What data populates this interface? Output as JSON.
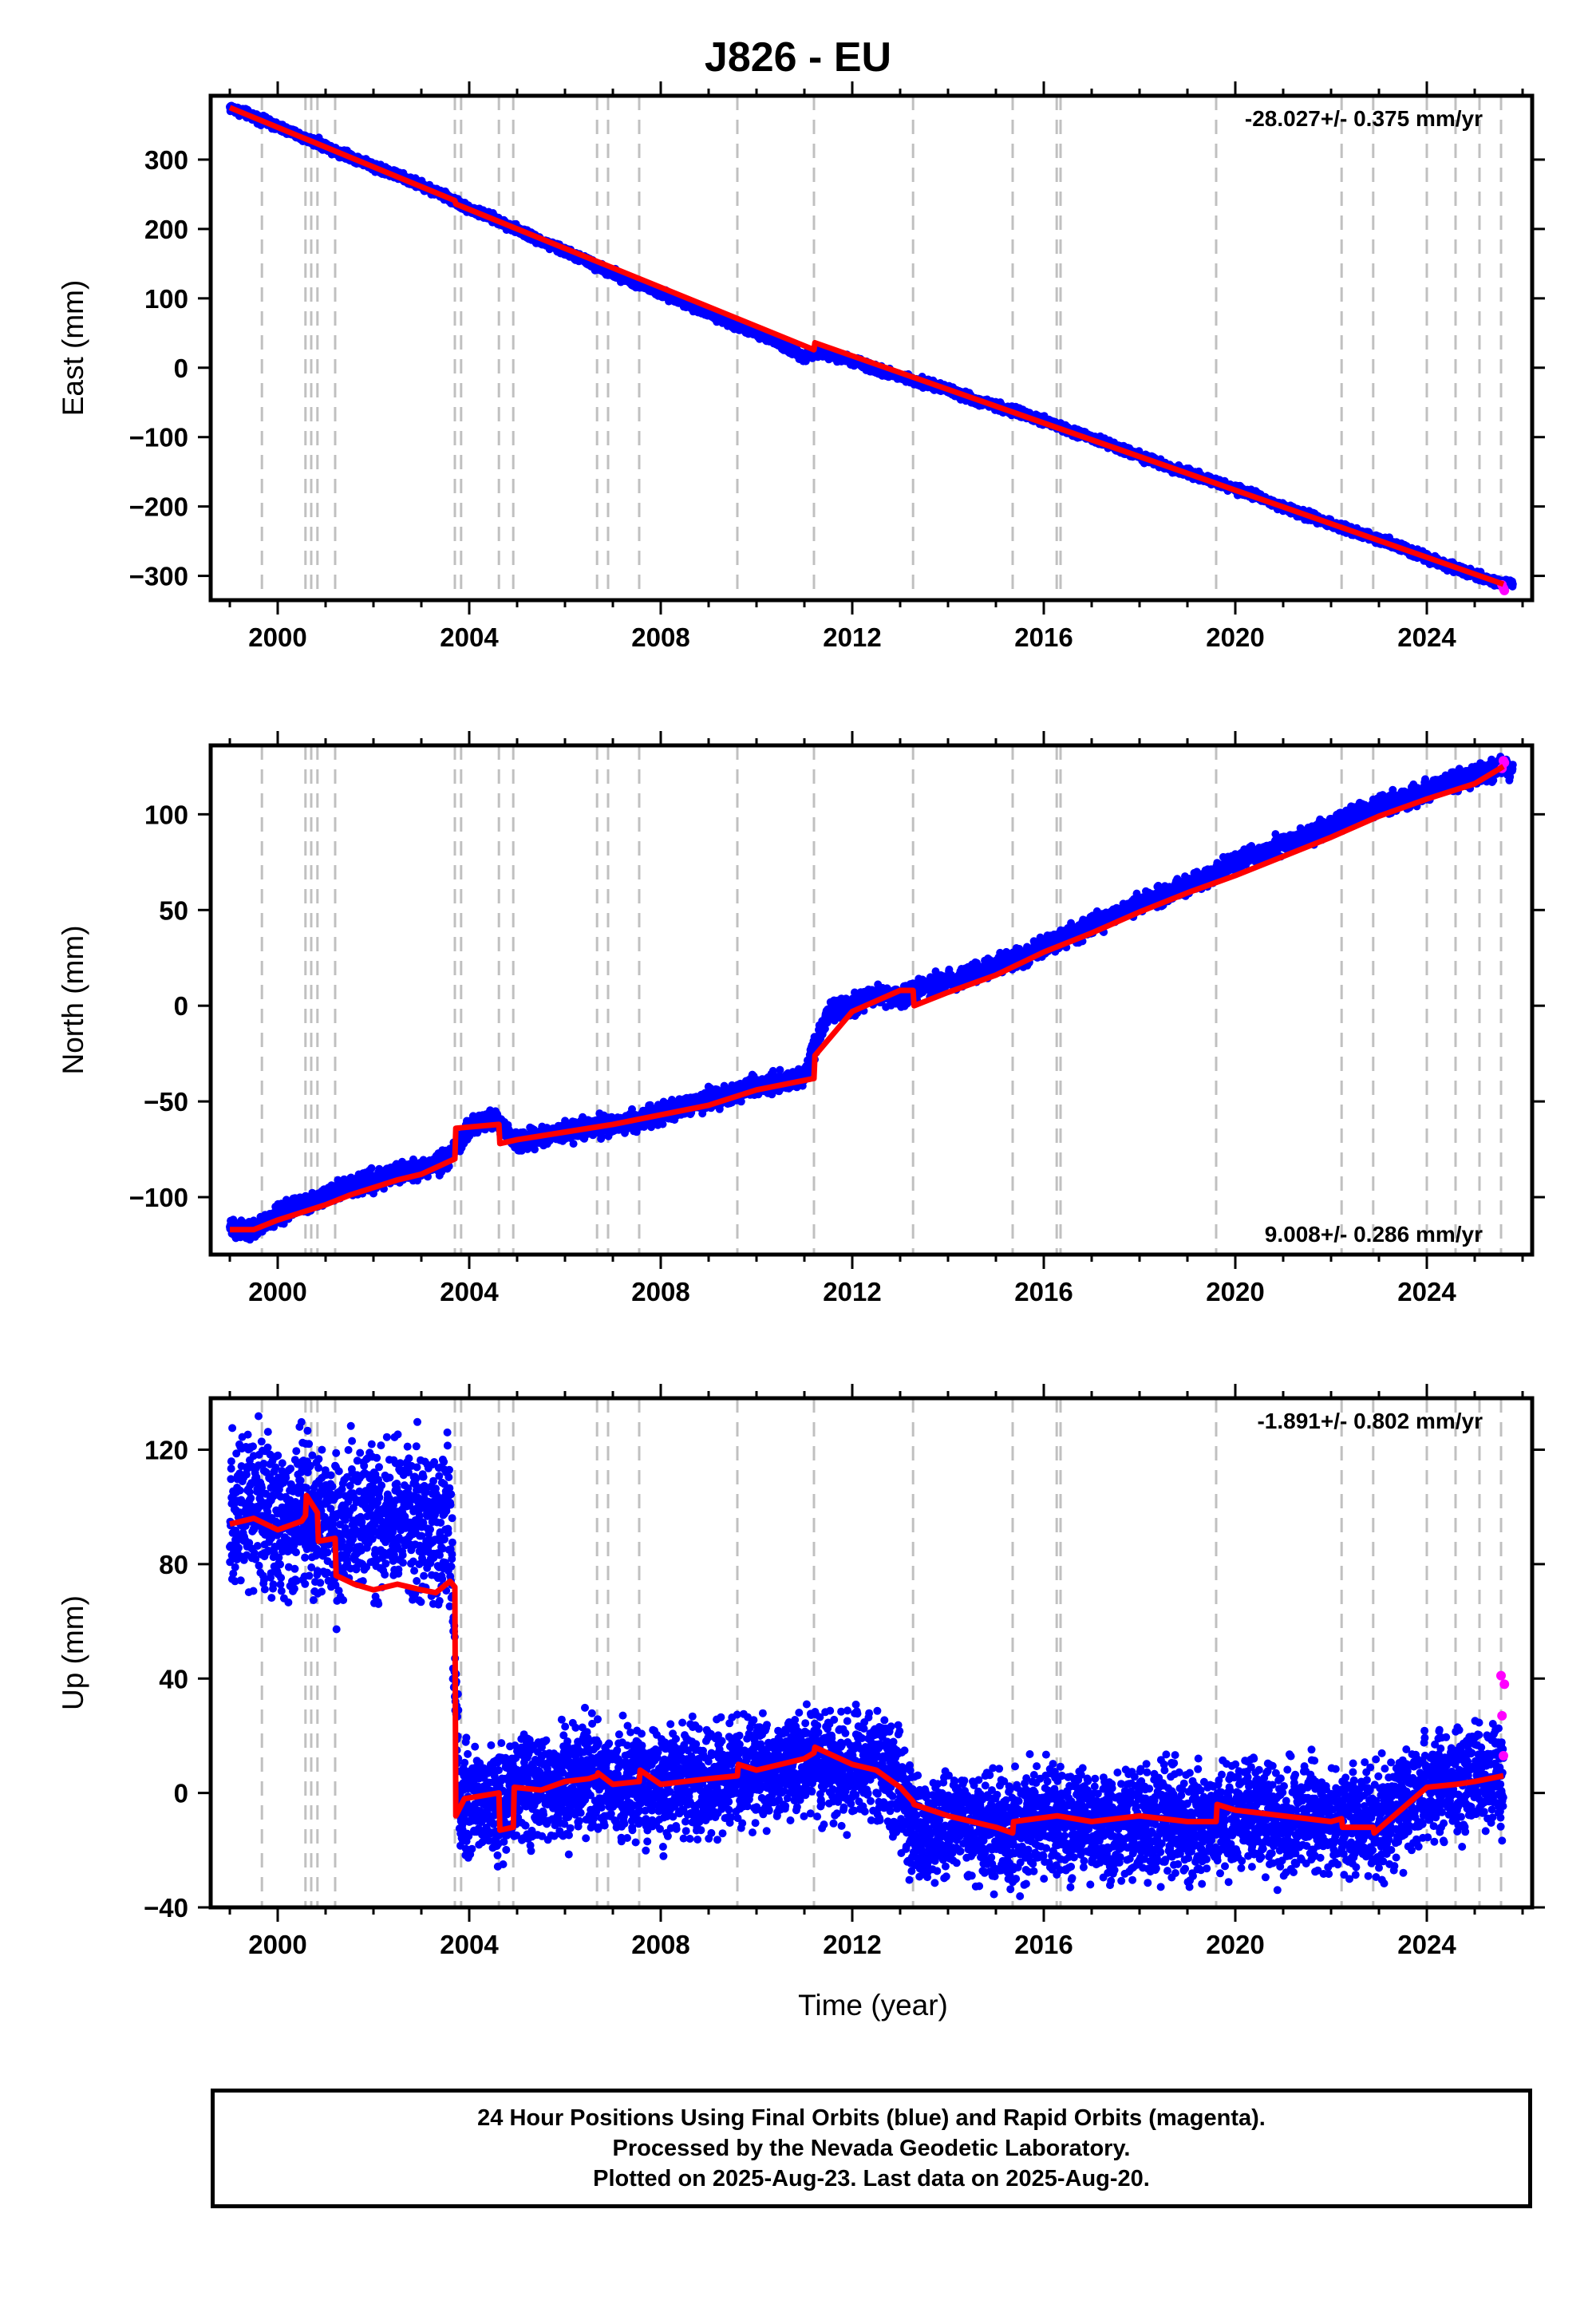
{
  "title": "J826 - EU",
  "x_axis_title": "Time (year)",
  "footer": {
    "line1": "24 Hour Positions Using Final Orbits (blue) and Rapid Orbits (magenta).",
    "line2": "Processed by the Nevada Geodetic Laboratory.",
    "line3": "Plotted on 2025-Aug-23. Last data on 2025-Aug-20."
  },
  "colors": {
    "final_orbits": "#0000ff",
    "rapid_orbits": "#ff00ff",
    "model": "#ff0000",
    "event_lines": "#c0c0c0"
  },
  "chart_data": [
    {
      "type": "scatter",
      "panel": "east",
      "ylabel": "East (mm)",
      "xlabel": "",
      "xlim": [
        1998.6,
        2026.2
      ],
      "ylim": [
        -335,
        392
      ],
      "x_ticks": [
        2000,
        2004,
        2008,
        2012,
        2016,
        2020,
        2024
      ],
      "y_ticks": [
        -300,
        -200,
        -100,
        0,
        100,
        200,
        300
      ],
      "rate_text": "-28.027+/- 0.375 mm/yr",
      "rate_position": "top-right",
      "event_lines": [
        1999.67,
        2000.58,
        2000.7,
        2000.83,
        2001.2,
        2003.7,
        2003.83,
        2004.62,
        2004.92,
        2006.67,
        2006.9,
        2007.55,
        2009.6,
        2011.2,
        2013.27,
        2015.35,
        2016.27,
        2016.35,
        2019.6,
        2022.22,
        2022.88,
        2024.0,
        2024.6,
        2025.1,
        2025.55
      ],
      "series": [
        {
          "name": "Final Orbits",
          "kind": "points",
          "x": [
            1999.0,
            1999.5,
            2000.0,
            2000.5,
            2001.0,
            2001.5,
            2002.0,
            2002.5,
            2003.0,
            2003.5,
            2004.0,
            2004.5,
            2005.0,
            2005.5,
            2006.0,
            2006.5,
            2007.0,
            2007.5,
            2008.0,
            2008.5,
            2009.0,
            2009.5,
            2010.0,
            2010.5,
            2011.0,
            2011.25,
            2011.5,
            2012.0,
            2012.5,
            2013.0,
            2013.5,
            2014.0,
            2014.5,
            2015.0,
            2015.5,
            2016.0,
            2016.5,
            2017.0,
            2017.5,
            2018.0,
            2018.5,
            2019.0,
            2019.5,
            2020.0,
            2020.5,
            2021.0,
            2021.5,
            2022.0,
            2022.5,
            2023.0,
            2023.5,
            2024.0,
            2024.5,
            2025.0,
            2025.5
          ],
          "y": [
            375,
            362,
            347,
            333,
            319,
            305,
            291,
            277,
            263,
            247,
            229,
            215,
            199,
            182,
            168,
            152,
            136,
            122,
            107,
            93,
            79,
            64,
            50,
            35,
            15,
            22,
            20,
            10,
            -3,
            -12,
            -22,
            -32,
            -45,
            -55,
            -66,
            -77,
            -89,
            -102,
            -114,
            -127,
            -140,
            -152,
            -163,
            -175,
            -187,
            -200,
            -213,
            -225,
            -236,
            -247,
            -260,
            -273,
            -287,
            -299,
            -310
          ]
        },
        {
          "name": "Rapid Orbits",
          "kind": "points",
          "x": [
            2025.57,
            2025.6,
            2025.62
          ],
          "y": [
            -313,
            -318,
            -321
          ]
        },
        {
          "name": "Model",
          "kind": "line",
          "x": [
            1999.0,
            2003.7,
            2003.72,
            2011.2,
            2011.22,
            2025.6
          ],
          "y": [
            375,
            241,
            236,
            26,
            36,
            -312
          ]
        }
      ]
    },
    {
      "type": "scatter",
      "panel": "north",
      "ylabel": "North (mm)",
      "xlabel": "",
      "xlim": [
        1998.6,
        2026.2
      ],
      "ylim": [
        -130,
        136
      ],
      "x_ticks": [
        2000,
        2004,
        2008,
        2012,
        2016,
        2020,
        2024
      ],
      "y_ticks": [
        -100,
        -50,
        0,
        50,
        100
      ],
      "rate_text": "9.008+/- 0.286 mm/yr",
      "rate_position": "bottom-right",
      "event_lines": [
        1999.67,
        2000.58,
        2000.7,
        2000.83,
        2001.2,
        2003.7,
        2003.83,
        2004.62,
        2004.92,
        2006.67,
        2006.9,
        2007.55,
        2009.6,
        2011.2,
        2013.27,
        2015.35,
        2016.27,
        2016.35,
        2019.6,
        2022.22,
        2022.88,
        2024.0,
        2024.6,
        2025.1,
        2025.55
      ],
      "series": [
        {
          "name": "Final Orbits",
          "kind": "points",
          "x": [
            1999.0,
            1999.5,
            2000.0,
            2000.5,
            2001.0,
            2001.5,
            2002.0,
            2002.5,
            2003.0,
            2003.5,
            2004.0,
            2004.5,
            2005.0,
            2005.5,
            2006.0,
            2006.5,
            2007.0,
            2007.5,
            2008.0,
            2008.5,
            2009.0,
            2009.5,
            2010.0,
            2010.5,
            2011.0,
            2011.5,
            2012.0,
            2012.5,
            2013.0,
            2013.5,
            2014.0,
            2014.5,
            2015.0,
            2015.5,
            2016.0,
            2016.5,
            2017.0,
            2017.5,
            2018.0,
            2018.5,
            2019.0,
            2019.5,
            2020.0,
            2020.5,
            2021.0,
            2021.5,
            2022.0,
            2022.5,
            2023.0,
            2023.5,
            2024.0,
            2024.5,
            2025.0,
            2025.5
          ],
          "y": [
            -115,
            -118,
            -109,
            -104,
            -99,
            -94,
            -91,
            -87,
            -85,
            -82,
            -64,
            -58,
            -72,
            -68,
            -66,
            -64,
            -62,
            -60,
            -56,
            -53,
            -49,
            -46,
            -42,
            -40,
            -36,
            -4,
            1,
            6,
            4,
            10,
            13,
            17,
            21,
            25,
            31,
            36,
            42,
            47,
            53,
            58,
            62,
            68,
            75,
            80,
            85,
            88,
            94,
            100,
            104,
            108,
            112,
            117,
            120,
            124
          ]
        },
        {
          "name": "Rapid Orbits",
          "kind": "points",
          "x": [
            2025.57,
            2025.6,
            2025.62
          ],
          "y": [
            124,
            128,
            127
          ]
        },
        {
          "name": "Model",
          "kind": "line",
          "x": [
            1999.0,
            1999.5,
            2000.0,
            2000.5,
            2001.0,
            2001.5,
            2002.0,
            2002.5,
            2003.0,
            2003.7,
            2003.72,
            2004.62,
            2004.64,
            2005.0,
            2006.0,
            2007.0,
            2008.0,
            2009.0,
            2010.0,
            2011.2,
            2011.22,
            2012.0,
            2013.0,
            2013.27,
            2013.29,
            2014.0,
            2015.0,
            2016.0,
            2017.0,
            2018.0,
            2019.0,
            2020.0,
            2021.0,
            2022.0,
            2023.0,
            2024.0,
            2025.0,
            2025.6
          ],
          "y": [
            -117,
            -117,
            -112,
            -108,
            -104,
            -99,
            -95,
            -91,
            -88,
            -80,
            -64,
            -62,
            -72,
            -70,
            -66,
            -62,
            -57,
            -52,
            -44,
            -38,
            -26,
            -3,
            8,
            8,
            0,
            7,
            16,
            28,
            38,
            49,
            59,
            68,
            78,
            88,
            99,
            108,
            116,
            125
          ]
        }
      ]
    },
    {
      "type": "scatter",
      "panel": "up",
      "ylabel": "Up (mm)",
      "xlabel": "Time (year)",
      "xlim": [
        1998.6,
        2026.2
      ],
      "ylim": [
        -40,
        138
      ],
      "x_ticks": [
        2000,
        2004,
        2008,
        2012,
        2016,
        2020,
        2024
      ],
      "y_ticks": [
        -40,
        0,
        40,
        80,
        120
      ],
      "rate_text": "-1.891+/- 0.802 mm/yr",
      "rate_position": "top-right",
      "event_lines": [
        1999.67,
        2000.58,
        2000.7,
        2000.83,
        2001.2,
        2003.7,
        2003.83,
        2004.62,
        2004.92,
        2006.67,
        2006.9,
        2007.55,
        2009.6,
        2011.2,
        2013.27,
        2015.35,
        2016.27,
        2016.35,
        2019.6,
        2022.22,
        2022.88,
        2024.0,
        2024.6,
        2025.1,
        2025.55
      ],
      "series": [
        {
          "name": "Final Orbits",
          "kind": "points",
          "x": [
            1999.0,
            1999.3,
            1999.6,
            2000.0,
            2000.3,
            2000.6,
            2000.9,
            2001.2,
            2001.5,
            2001.8,
            2002.1,
            2002.4,
            2002.7,
            2003.0,
            2003.3,
            2003.6,
            2003.8,
            2004.2,
            2004.6,
            2005.0,
            2005.5,
            2006.0,
            2006.5,
            2007.0,
            2007.5,
            2008.0,
            2008.5,
            2009.0,
            2009.5,
            2010.0,
            2010.5,
            2011.0,
            2011.5,
            2012.0,
            2012.5,
            2012.9,
            2013.3,
            2013.8,
            2014.3,
            2014.8,
            2015.3,
            2015.8,
            2016.3,
            2016.8,
            2017.3,
            2017.8,
            2018.3,
            2018.8,
            2019.3,
            2019.8,
            2020.3,
            2020.8,
            2021.3,
            2021.8,
            2022.3,
            2022.8,
            2023.3,
            2023.8,
            2024.3,
            2024.8,
            2025.3
          ],
          "y": [
            95,
            100,
            102,
            95,
            96,
            100,
            98,
            92,
            94,
            98,
            96,
            95,
            97,
            93,
            95,
            92,
            -4,
            -2,
            -5,
            3,
            0,
            2,
            6,
            2,
            4,
            3,
            5,
            2,
            6,
            8,
            9,
            11,
            12,
            8,
            10,
            8,
            -14,
            -12,
            -9,
            -12,
            -14,
            -11,
            -10,
            -9,
            -12,
            -8,
            -11,
            -9,
            -12,
            -8,
            -7,
            -9,
            -10,
            -8,
            -9,
            -11,
            -7,
            -2,
            2,
            5,
            6
          ]
        },
        {
          "name": "Rapid Orbits",
          "kind": "points",
          "x": [
            2025.55,
            2025.57,
            2025.6,
            2025.62
          ],
          "y": [
            41,
            27,
            13,
            38
          ]
        },
        {
          "name": "Model",
          "kind": "line",
          "x": [
            1999.0,
            1999.5,
            2000.0,
            2000.5,
            2000.58,
            2000.6,
            2000.83,
            2000.85,
            2001.2,
            2001.22,
            2001.6,
            2002.0,
            2002.5,
            2003.0,
            2003.3,
            2003.6,
            2003.7,
            2003.72,
            2003.9,
            2004.62,
            2004.64,
            2004.92,
            2004.94,
            2005.5,
            2006.0,
            2006.5,
            2006.67,
            2006.69,
            2007.0,
            2007.55,
            2007.57,
            2008.0,
            2009.0,
            2009.6,
            2009.62,
            2010.0,
            2011.0,
            2011.2,
            2011.22,
            2012.0,
            2012.5,
            2013.0,
            2013.27,
            2013.29,
            2014.0,
            2015.0,
            2015.35,
            2015.37,
            2016.27,
            2016.29,
            2017.0,
            2018.0,
            2019.0,
            2019.6,
            2019.62,
            2020.0,
            2021.0,
            2022.0,
            2022.22,
            2022.24,
            2022.88,
            2022.9,
            2024.0,
            2024.6,
            2025.0,
            2025.6
          ],
          "y": [
            94,
            96,
            92,
            95,
            97,
            104,
            98,
            88,
            89,
            76,
            73,
            71,
            73,
            71,
            70,
            74,
            72,
            -8,
            -2,
            0,
            -13,
            -12,
            2,
            1,
            4,
            5,
            6,
            7,
            3,
            4,
            8,
            3,
            5,
            6,
            10,
            8,
            12,
            14,
            16,
            10,
            8,
            2,
            -3,
            -4,
            -8,
            -12,
            -14,
            -10,
            -8,
            -8,
            -10,
            -8,
            -10,
            -10,
            -4,
            -6,
            -8,
            -10,
            -9,
            -12,
            -12,
            -14,
            2,
            3,
            4,
            6
          ]
        }
      ]
    }
  ]
}
